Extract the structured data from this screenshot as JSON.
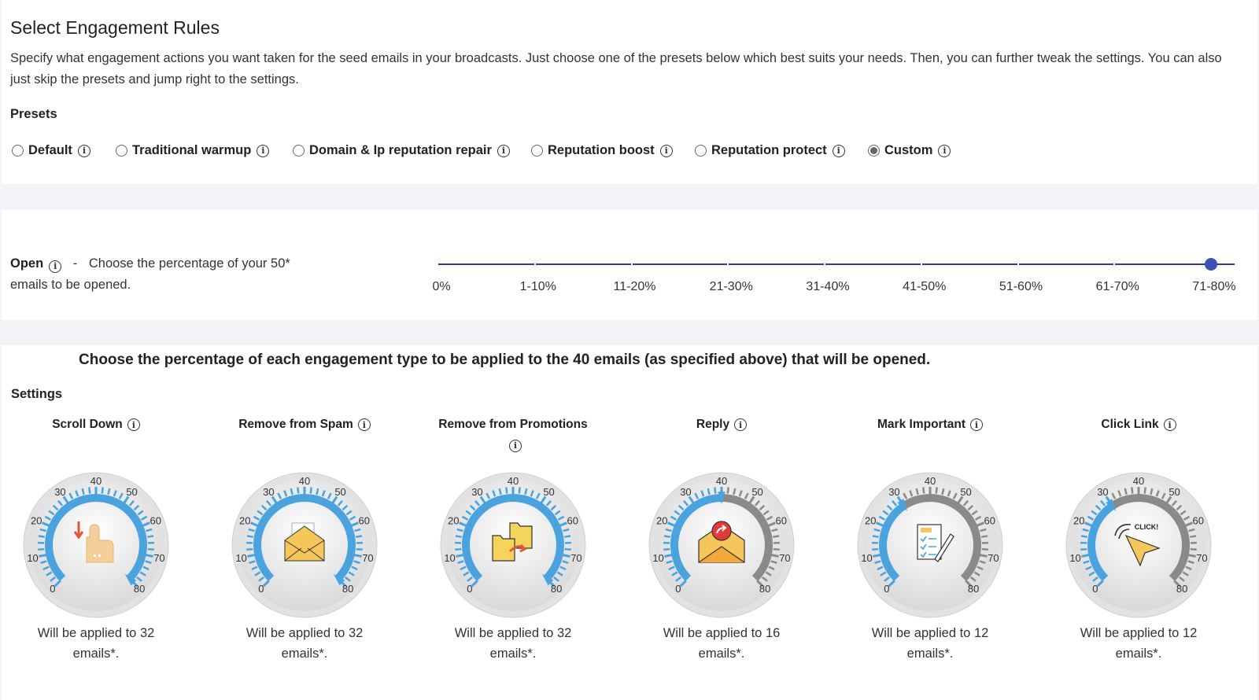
{
  "header": {
    "title": "Select Engagement Rules",
    "description": "Specify what engagement actions you want taken for the seed emails in your broadcasts. Just choose one of the presets below which best suits your needs. Then, you can further tweak the settings. You can also just skip the presets and jump right to the settings.",
    "presets_label": "Presets"
  },
  "presets": [
    {
      "label": "Default",
      "checked": false
    },
    {
      "label": "Traditional warmup",
      "checked": false
    },
    {
      "label": "Domain & Ip reputation repair",
      "checked": false
    },
    {
      "label": "Reputation boost",
      "checked": false
    },
    {
      "label": "Reputation protect",
      "checked": false
    },
    {
      "label": "Custom",
      "checked": true
    }
  ],
  "open": {
    "label": "Open",
    "separator": "-",
    "description": "Choose the percentage of your 50* emails to be opened.",
    "slider_labels": [
      "0%",
      "1-10%",
      "11-20%",
      "21-30%",
      "31-40%",
      "41-50%",
      "51-60%",
      "61-70%",
      "71-80%"
    ],
    "selected_index": 8
  },
  "settings": {
    "heading": "Choose the percentage of each engagement type to be applied to the 40 emails (as specified above) that will be opened.",
    "label": "Settings",
    "gauge_ticks": [
      "0",
      "10",
      "20",
      "30",
      "40",
      "50",
      "60",
      "70",
      "80"
    ],
    "gauge_min": 0,
    "gauge_max": 80,
    "gauges": [
      {
        "title": "Scroll Down",
        "value": 80,
        "caption": "Will be applied to 32 emails*.",
        "icon": "scroll-down-hand-icon"
      },
      {
        "title": "Remove from Spam",
        "value": 80,
        "caption": "Will be applied to 32 emails*.",
        "icon": "spam-envelope-icon"
      },
      {
        "title": "Remove from Promotions",
        "value": 80,
        "caption": "Will be applied to 32 emails*.",
        "icon": "folders-icon"
      },
      {
        "title": "Reply",
        "value": 40,
        "caption": "Will be applied to 16 emails*.",
        "icon": "reply-envelope-icon"
      },
      {
        "title": "Mark Important",
        "value": 30,
        "caption": "Will be applied to 12 emails*.",
        "icon": "checklist-icon"
      },
      {
        "title": "Click Link",
        "value": 30,
        "caption": "Will be applied to 12 emails*.",
        "icon": "click-cursor-icon",
        "icon_text": "CLICK!"
      }
    ]
  },
  "colors": {
    "accent": "#3b4fb5",
    "gauge_active": "#4aa3df",
    "gauge_inactive": "#8a8a8a"
  }
}
